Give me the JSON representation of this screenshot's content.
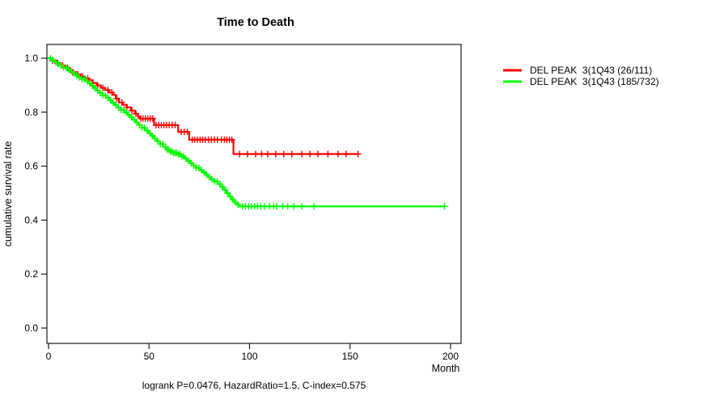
{
  "title": "Time to Death",
  "footer": "logrank P=0.0476, HazardRatio=1.5, C-index=0.575",
  "chart_data": {
    "type": "line",
    "subtype": "kaplan-meier-step-curves",
    "title": "Time to Death",
    "xlabel": "Month",
    "ylabel": "cumulative survival rate",
    "xlim": [
      0,
      200
    ],
    "ylim": [
      0.0,
      1.0
    ],
    "grid": false,
    "legend_position": "right-outside",
    "x_tick_values": [
      0,
      50,
      100,
      150,
      200
    ],
    "x_tick_labels": [
      "0",
      "50",
      "100",
      "150",
      "200"
    ],
    "y_tick_values": [
      0.0,
      0.2,
      0.4,
      0.6,
      0.8,
      1.0
    ],
    "y_tick_labels": [
      "0.0",
      "0.2",
      "0.4",
      "0.6",
      "0.8",
      "1.0"
    ],
    "annotation": "logrank P=0.0476, HazardRatio=1.5, C-index=0.575",
    "series": [
      {
        "name": "DEL PEAK  3(1Q43 (26/111)",
        "color": "#ff0000",
        "events": "26/111",
        "end_month": 154,
        "steps": [
          [
            0,
            1.0
          ],
          [
            2,
            0.991
          ],
          [
            4,
            0.982
          ],
          [
            6,
            0.973
          ],
          [
            8,
            0.964
          ],
          [
            10,
            0.955
          ],
          [
            12,
            0.948
          ],
          [
            14,
            0.94
          ],
          [
            16,
            0.932
          ],
          [
            18,
            0.925
          ],
          [
            20,
            0.918
          ],
          [
            22,
            0.908
          ],
          [
            24,
            0.899
          ],
          [
            26,
            0.89
          ],
          [
            28,
            0.882
          ],
          [
            30,
            0.873
          ],
          [
            32,
            0.864
          ],
          [
            33.5,
            0.85
          ],
          [
            35,
            0.836
          ],
          [
            37,
            0.827
          ],
          [
            39,
            0.818
          ],
          [
            41,
            0.806
          ],
          [
            43,
            0.794
          ],
          [
            44.5,
            0.783
          ],
          [
            45.5,
            0.776
          ],
          [
            52.5,
            0.752
          ],
          [
            64.5,
            0.727
          ],
          [
            70,
            0.698
          ],
          [
            92,
            0.645
          ]
        ],
        "censor_times": [
          2,
          4.5,
          7,
          9.5,
          12,
          14.5,
          17,
          19.5,
          22,
          24.5,
          27,
          29.5,
          31.5,
          34,
          36.5,
          39,
          41.5,
          43.5,
          46,
          47,
          48.2,
          49.4,
          50.6,
          51.8,
          53.5,
          54.8,
          56.1,
          57.4,
          58.7,
          60,
          61.5,
          63,
          66,
          67.5,
          69,
          71.5,
          72.8,
          74.1,
          75.4,
          76.7,
          78,
          79.5,
          81,
          82.5,
          84,
          86,
          87.5,
          88.7,
          90,
          91.2,
          95,
          99,
          103,
          106,
          109,
          113,
          117,
          121,
          126,
          130,
          134,
          139,
          144,
          148,
          154
        ]
      },
      {
        "name": "DEL PEAK  3(1Q43 (185/732)",
        "color": "#00ff00",
        "events": "185/732",
        "end_month": 197,
        "steps": [
          [
            0,
            1.0
          ],
          [
            1.5,
            0.993
          ],
          [
            3,
            0.986
          ],
          [
            4.5,
            0.979
          ],
          [
            6,
            0.972
          ],
          [
            7.5,
            0.965
          ],
          [
            9,
            0.958
          ],
          [
            10.5,
            0.951
          ],
          [
            12,
            0.944
          ],
          [
            13.5,
            0.937
          ],
          [
            15,
            0.929
          ],
          [
            16.5,
            0.922
          ],
          [
            18,
            0.915
          ],
          [
            19.5,
            0.907
          ],
          [
            21,
            0.898
          ],
          [
            22.5,
            0.889
          ],
          [
            24,
            0.88
          ],
          [
            25.5,
            0.871
          ],
          [
            27,
            0.862
          ],
          [
            28.5,
            0.853
          ],
          [
            30,
            0.844
          ],
          [
            31.5,
            0.835
          ],
          [
            33,
            0.826
          ],
          [
            34.5,
            0.817
          ],
          [
            36,
            0.808
          ],
          [
            37.5,
            0.799
          ],
          [
            39,
            0.79
          ],
          [
            40.5,
            0.781
          ],
          [
            42,
            0.772
          ],
          [
            43.5,
            0.762
          ],
          [
            45,
            0.752
          ],
          [
            46.5,
            0.742
          ],
          [
            48,
            0.732
          ],
          [
            49.5,
            0.722
          ],
          [
            51,
            0.712
          ],
          [
            52.5,
            0.702
          ],
          [
            54,
            0.692
          ],
          [
            55.5,
            0.682
          ],
          [
            57,
            0.671
          ],
          [
            58.5,
            0.661
          ],
          [
            60,
            0.654
          ],
          [
            62,
            0.649
          ],
          [
            64,
            0.644
          ],
          [
            66,
            0.637
          ],
          [
            67.5,
            0.628
          ],
          [
            69,
            0.62
          ],
          [
            70.5,
            0.611
          ],
          [
            72,
            0.602
          ],
          [
            73.5,
            0.594
          ],
          [
            75,
            0.585
          ],
          [
            76.5,
            0.577
          ],
          [
            78,
            0.568
          ],
          [
            79.5,
            0.559
          ],
          [
            81,
            0.551
          ],
          [
            82.5,
            0.543
          ],
          [
            84,
            0.534
          ],
          [
            85.5,
            0.523
          ],
          [
            87,
            0.512
          ],
          [
            88.5,
            0.5
          ],
          [
            90,
            0.487
          ],
          [
            91.2,
            0.476
          ],
          [
            92.4,
            0.466
          ],
          [
            93.6,
            0.457
          ],
          [
            94.8,
            0.451
          ]
        ],
        "censor_times": [
          1,
          2.3,
          3.6,
          4.9,
          6.2,
          7.5,
          8.8,
          10.1,
          11.4,
          12.7,
          14,
          15.3,
          16.6,
          17.9,
          19.2,
          20.5,
          21.8,
          23.1,
          24.4,
          25.7,
          27,
          28.3,
          29.6,
          30.9,
          32.2,
          33.5,
          34.8,
          36.1,
          37.4,
          38.7,
          40,
          41.3,
          42.6,
          43.9,
          45.2,
          46.5,
          47.8,
          49.1,
          50.4,
          51.7,
          53,
          54.3,
          55.6,
          56.9,
          58.2,
          59,
          59.8,
          60.6,
          61.4,
          62.2,
          63,
          63.8,
          64.6,
          65.4,
          66.2,
          67,
          68.3,
          69.6,
          70.9,
          72.2,
          73.5,
          74.8,
          76.1,
          77.4,
          78.7,
          80,
          81.3,
          82.6,
          83.9,
          85.2,
          86.5,
          87.8,
          89.1,
          90.4,
          91.7,
          93,
          94.3,
          96.5,
          98,
          99.5,
          101,
          102.5,
          104,
          105.5,
          107.5,
          110,
          112,
          113.5,
          116.5,
          119,
          122,
          126,
          132,
          197
        ]
      }
    ]
  },
  "layout_colors": {
    "axis": "#1a1a1a",
    "text": "#000000",
    "background": "#ffffff"
  }
}
